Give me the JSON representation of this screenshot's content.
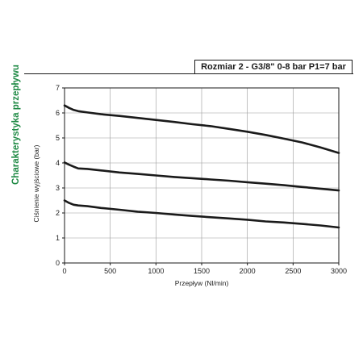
{
  "side_title": "Charakterystyka przepływu",
  "header": "Rozmiar 2 - G3/8\" 0-8 bar P1=7 bar",
  "colors": {
    "accent": "#1f8a45",
    "line": "#1a1a1a",
    "grid": "#999999"
  },
  "chart_data": {
    "type": "line",
    "title": "",
    "xlabel": "Przepływ (Nl/min)",
    "ylabel": "Ciśnienie wyjściowe (bar)",
    "xlim": [
      0,
      3000
    ],
    "ylim": [
      0,
      7
    ],
    "xticks": [
      0,
      500,
      1000,
      1500,
      2000,
      2500,
      3000
    ],
    "yticks": [
      0,
      1,
      2,
      3,
      4,
      5,
      6,
      7
    ],
    "grid": true,
    "series": [
      {
        "x": [
          0,
          50,
          100,
          150,
          250,
          400,
          600,
          800,
          1000,
          1200,
          1400,
          1600,
          1800,
          2000,
          2200,
          2400,
          2600,
          2800,
          3000
        ],
        "values": [
          6.3,
          6.2,
          6.12,
          6.07,
          6.02,
          5.95,
          5.88,
          5.8,
          5.72,
          5.64,
          5.55,
          5.47,
          5.36,
          5.25,
          5.12,
          4.97,
          4.82,
          4.62,
          4.4
        ]
      },
      {
        "x": [
          0,
          50,
          100,
          150,
          250,
          400,
          600,
          800,
          1000,
          1200,
          1400,
          1600,
          1800,
          2000,
          2200,
          2400,
          2600,
          2800,
          3000
        ],
        "values": [
          4.02,
          3.93,
          3.85,
          3.78,
          3.76,
          3.7,
          3.62,
          3.56,
          3.5,
          3.44,
          3.39,
          3.34,
          3.29,
          3.23,
          3.17,
          3.11,
          3.04,
          2.97,
          2.9
        ]
      },
      {
        "x": [
          0,
          50,
          100,
          150,
          250,
          400,
          600,
          800,
          1000,
          1200,
          1400,
          1600,
          1800,
          2000,
          2200,
          2400,
          2600,
          2800,
          3000
        ],
        "values": [
          2.5,
          2.4,
          2.33,
          2.3,
          2.27,
          2.2,
          2.13,
          2.05,
          2.0,
          1.94,
          1.88,
          1.83,
          1.78,
          1.73,
          1.66,
          1.62,
          1.56,
          1.5,
          1.42
        ]
      }
    ]
  }
}
